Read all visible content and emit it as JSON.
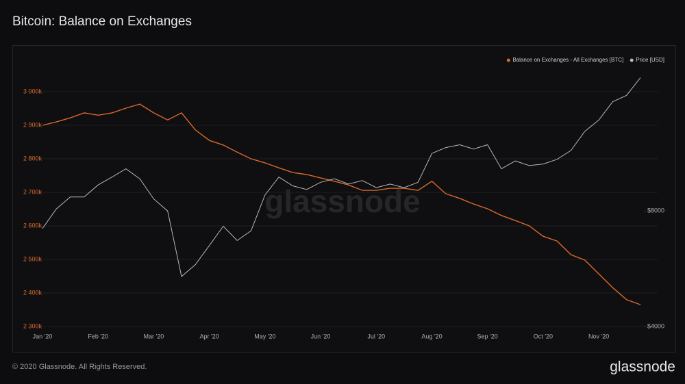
{
  "chart_data": {
    "type": "line",
    "title": "Bitcoin: Balance on Exchanges",
    "watermark": "glassnode",
    "footer": "© 2020 Glassnode. All Rights Reserved.",
    "brand": "glassnode",
    "categories": [
      "Jan '20",
      null,
      null,
      null,
      "Feb '20",
      null,
      null,
      null,
      "Mar '20",
      null,
      null,
      null,
      "Apr '20",
      null,
      null,
      null,
      "May '20",
      null,
      null,
      null,
      "Jun '20",
      null,
      null,
      null,
      "Jul '20",
      null,
      null,
      null,
      "Aug '20",
      null,
      null,
      null,
      "Sep '20",
      null,
      null,
      null,
      "Oct '20",
      null,
      null,
      null,
      "Nov '20",
      null,
      null,
      null
    ],
    "series": [
      {
        "name": "Balance on Exchanges - All Exchanges [BTC]",
        "color": "#d9692a",
        "axis": "y",
        "values": [
          2900000,
          2910000,
          2922000,
          2937000,
          2930000,
          2937000,
          2951000,
          2963000,
          2937000,
          2916000,
          2937000,
          2886000,
          2855000,
          2841000,
          2820000,
          2800000,
          2788000,
          2773000,
          2759000,
          2753000,
          2743000,
          2733000,
          2722000,
          2706000,
          2706000,
          2712000,
          2712000,
          2706000,
          2733000,
          2696000,
          2682000,
          2665000,
          2651000,
          2631000,
          2616000,
          2600000,
          2569000,
          2555000,
          2514000,
          2498000,
          2457000,
          2416000,
          2380000,
          2365000
        ]
      },
      {
        "name": "Price [USD]",
        "color": "#b8b8b8",
        "axis": "y2",
        "values": [
          7200,
          8100,
          8700,
          8700,
          9350,
          9800,
          10300,
          9700,
          8600,
          8000,
          5400,
          5800,
          6500,
          7300,
          6700,
          7100,
          8800,
          9800,
          9300,
          9100,
          9500,
          9700,
          9400,
          9600,
          9200,
          9400,
          9200,
          9500,
          11300,
          11700,
          11900,
          11600,
          11900,
          10300,
          10800,
          10500,
          10600,
          10900,
          11500,
          12900,
          13800,
          15400,
          16000,
          17800
        ]
      }
    ],
    "ylim": [
      2300000,
      3100000
    ],
    "yticks": [
      {
        "value": 2300000,
        "label": "2 300k"
      },
      {
        "value": 2400000,
        "label": "2 400k"
      },
      {
        "value": 2500000,
        "label": "2 500k"
      },
      {
        "value": 2600000,
        "label": "2 600k"
      },
      {
        "value": 2700000,
        "label": "2 700k"
      },
      {
        "value": 2800000,
        "label": "2 800k"
      },
      {
        "value": 2900000,
        "label": "2 900k"
      },
      {
        "value": 3000000,
        "label": "3 000k"
      }
    ],
    "y2lim": [
      4000,
      20000
    ],
    "y2scale": "log",
    "y2ticks": [
      {
        "value": 4000,
        "label": "$4000"
      },
      {
        "value": 8000,
        "label": "$8000"
      }
    ],
    "grid": true,
    "legend": "top-right"
  }
}
